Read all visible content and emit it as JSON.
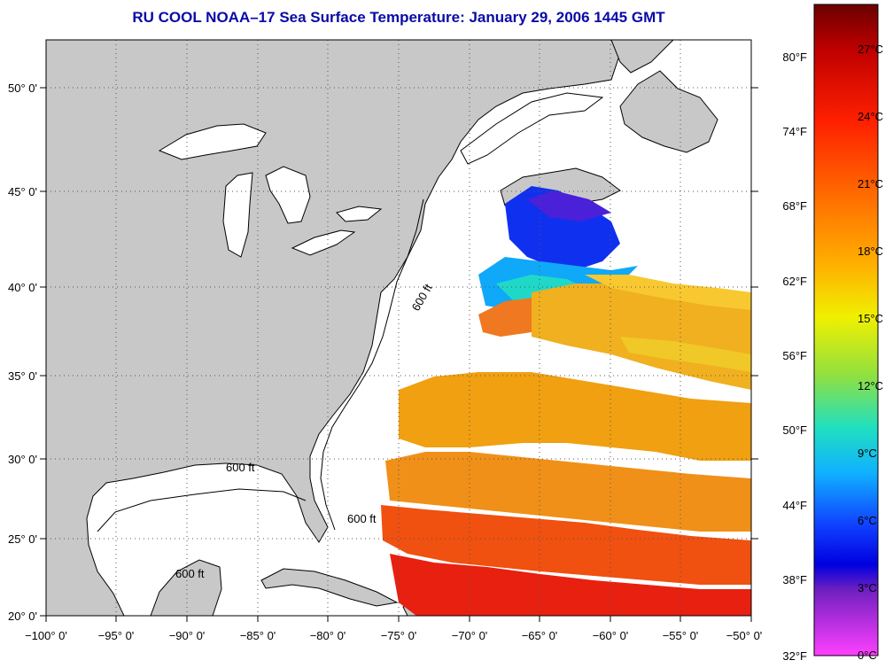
{
  "title": "RU COOL  NOAA–17  Sea Surface Temperature:  January 29, 2006 1445 GMT",
  "lon_ticks": [
    "−100° 0'",
    "−95° 0'",
    "−90° 0'",
    "−85° 0'",
    "−80° 0'",
    "−75° 0'",
    "−70° 0'",
    "−65° 0'",
    "−60° 0'",
    "−55° 0'",
    "−50° 0'"
  ],
  "lat_ticks": [
    "50° 0'",
    "45° 0'",
    "40° 0'",
    "35° 0'",
    "30° 0'",
    "25° 0'",
    "20° 0'"
  ],
  "depth_contour_label": "600 ft",
  "colorbar": {
    "fahrenheit": [
      "80°F",
      "74°F",
      "68°F",
      "62°F",
      "56°F",
      "50°F",
      "44°F",
      "38°F",
      "32°F"
    ],
    "celsius": [
      "27°C",
      "24°C",
      "21°C",
      "18°C",
      "15°C",
      "12°C",
      "9°C",
      "6°C",
      "3°C",
      "0°C"
    ],
    "colors": [
      "#7a0000",
      "#e01010",
      "#ff5a00",
      "#ffa000",
      "#f0f000",
      "#80e040",
      "#10e0d0",
      "#10a0ff",
      "#1010ff",
      "#6010c0",
      "#ff40ff"
    ]
  },
  "land_color": "#c8c8c8",
  "ocean_color": "#ffffff"
}
